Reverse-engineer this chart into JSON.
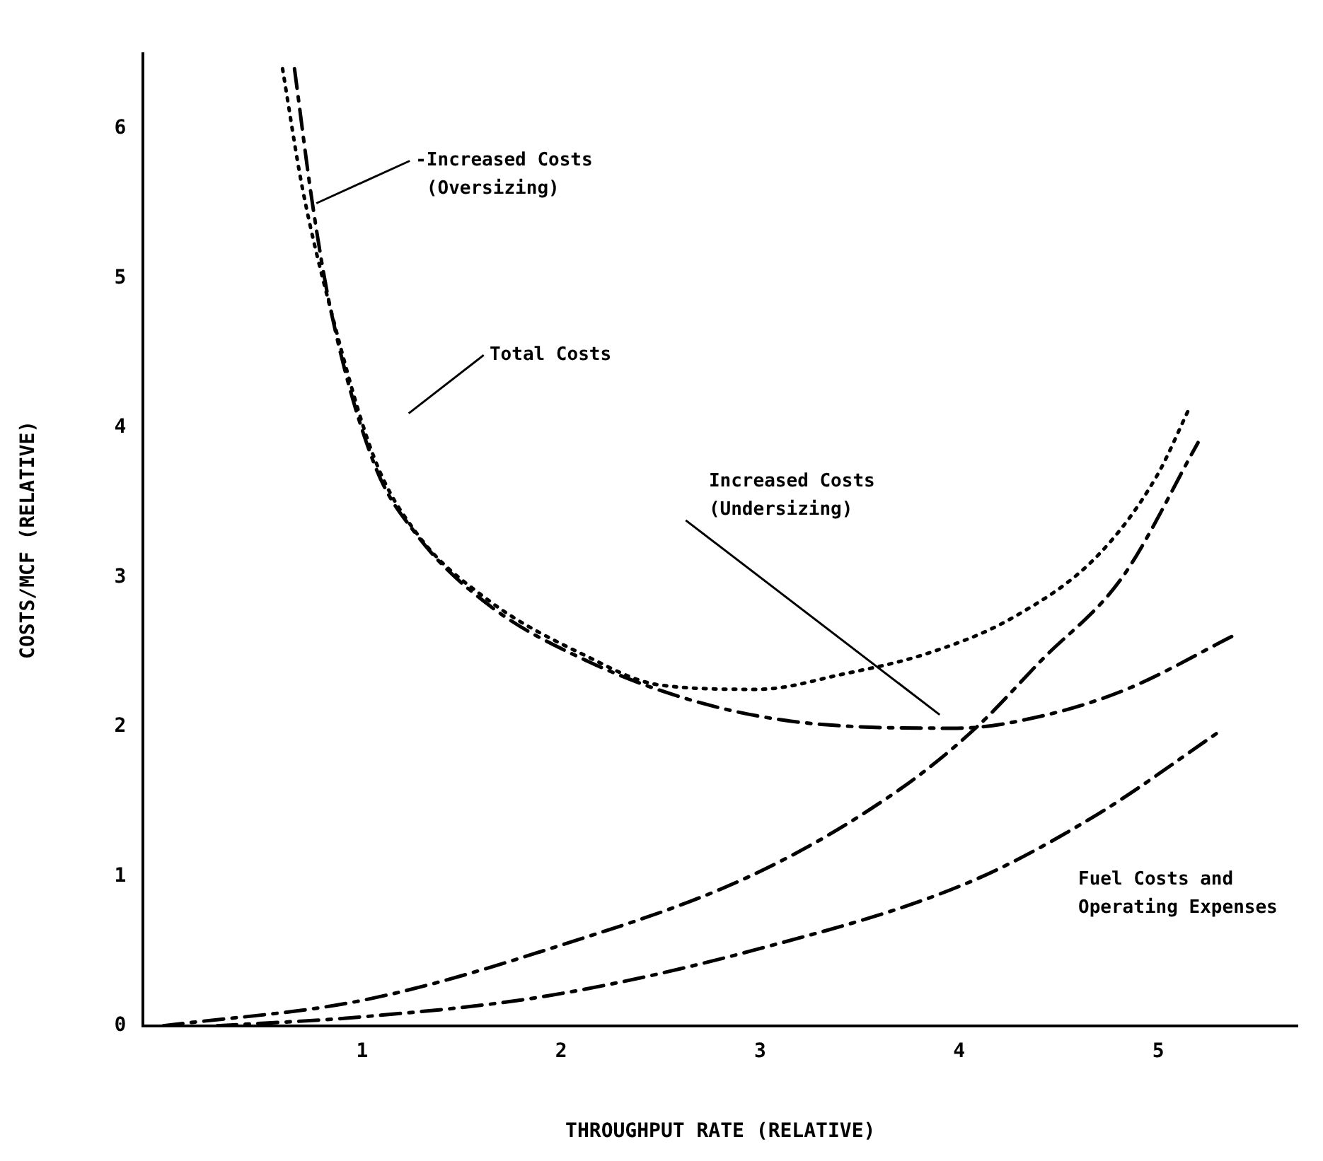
{
  "chart_data": {
    "type": "line",
    "xlabel": "THROUGHPUT RATE (RELATIVE)",
    "ylabel": "COSTS/MCF (RELATIVE)",
    "xlim": [
      -0.1,
      5.7
    ],
    "ylim": [
      0,
      6.5
    ],
    "xticks": [
      1,
      2,
      3,
      4,
      5
    ],
    "yticks": [
      0,
      1,
      2,
      3,
      4,
      5,
      6
    ],
    "grid": false,
    "legend": false,
    "series": [
      {
        "color": "#000000",
        "line_style": "dotted",
        "x": [
          0.6,
          0.7,
          0.84,
          1.06,
          1.27,
          1.63,
          2.13,
          2.49,
          2.99,
          3.41,
          3.84,
          4.27,
          4.7,
          4.99,
          5.16
        ],
        "values": [
          6.4,
          5.6,
          4.8,
          3.8,
          3.3,
          2.85,
          2.47,
          2.28,
          2.25,
          2.35,
          2.49,
          2.73,
          3.15,
          3.67,
          4.14
        ]
      },
      {
        "color": "#000000",
        "line_style": "dashed",
        "x": [
          0.66,
          0.75,
          0.84,
          1.06,
          1.27,
          1.63,
          2.13,
          2.7,
          3.27,
          3.99,
          4.41,
          4.84,
          5.38
        ],
        "values": [
          6.4,
          5.5,
          4.8,
          3.76,
          3.29,
          2.82,
          2.44,
          2.16,
          2.02,
          1.99,
          2.07,
          2.25,
          2.61
        ]
      },
      {
        "color": "#000000",
        "line_style": "dashed",
        "x": [
          0,
          1,
          1.93,
          2.98,
          3.7,
          4.09,
          4.41,
          4.82,
          5.2
        ],
        "values": [
          0,
          0.17,
          0.51,
          1.02,
          1.58,
          2.0,
          2.44,
          3.0,
          3.9
        ]
      },
      {
        "color": "#000000",
        "line_style": "dashed",
        "x": [
          0.27,
          1,
          1.93,
          2.98,
          4.05,
          4.69,
          5.31
        ],
        "values": [
          0,
          0.06,
          0.2,
          0.51,
          0.96,
          1.41,
          1.97
        ]
      }
    ],
    "annotations": [
      {
        "text": "-Increased Costs\n (Oversizing)",
        "x": 0.77,
        "y": 5.5
      },
      "Total Costs",
      "Increased Costs\n(Undersizing)",
      "Fuel Costs and\nOperating Expenses"
    ]
  }
}
